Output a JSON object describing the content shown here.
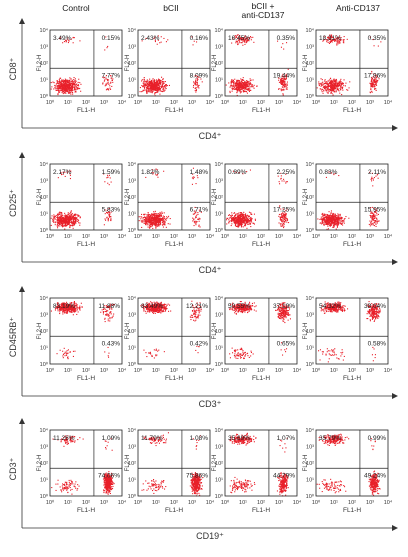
{
  "columns": [
    "Control",
    "bCII",
    "bCII +\nanti-CD137",
    "Anti-CD137"
  ],
  "tick_labels": [
    "10⁰",
    "10¹",
    "10²",
    "10³",
    "10⁴"
  ],
  "colors": {
    "dots": "#e8202a",
    "lines": "#222222",
    "axis": "#333333"
  },
  "chart_data": [
    {
      "type": "scatter",
      "ylabel": "CD8⁺",
      "xlabel": "CD4⁺",
      "panel_xlabel": "FL1-H",
      "panel_ylabel": "FL2-H",
      "xlim": [
        1,
        10000
      ],
      "ylim": [
        1,
        10000
      ],
      "log_scale": true,
      "panels": [
        {
          "column": "Control",
          "quadrants": {
            "ul": "3.49%",
            "ur": "0.15%",
            "lr": "7.77%"
          }
        },
        {
          "column": "bCII",
          "quadrants": {
            "ul": "2.43%",
            "ur": "0.16%",
            "lr": "8.09%"
          }
        },
        {
          "column": "bCII +\nanti-CD137",
          "quadrants": {
            "ul": "16.45%",
            "ur": "0.35%",
            "lr": "19.44%"
          }
        },
        {
          "column": "Anti-CD137",
          "quadrants": {
            "ul": "18.31%",
            "ur": "0.35%",
            "lr": "17.96%"
          }
        }
      ]
    },
    {
      "type": "scatter",
      "ylabel": "CD25⁺",
      "xlabel": "CD4⁺",
      "panel_xlabel": "FL1-H",
      "panel_ylabel": "FL2-H",
      "xlim": [
        1,
        10000
      ],
      "ylim": [
        1,
        10000
      ],
      "log_scale": true,
      "panels": [
        {
          "column": "Control",
          "quadrants": {
            "ul": "2.17%",
            "ur": "1.59%",
            "lr": "5.83%"
          }
        },
        {
          "column": "bCII",
          "quadrants": {
            "ul": "1.82%",
            "ur": "1.48%",
            "lr": "6.71%"
          }
        },
        {
          "column": "bCII +\nanti-CD137",
          "quadrants": {
            "ul": "0.89%",
            "ur": "2.25%",
            "lr": "17.25%"
          }
        },
        {
          "column": "Anti-CD137",
          "quadrants": {
            "ul": "0.83%",
            "ur": "2.11%",
            "lr": "15.95%"
          }
        }
      ]
    },
    {
      "type": "scatter",
      "ylabel": "CD45RB⁺",
      "xlabel": "CD3⁺",
      "panel_xlabel": "FL1-H",
      "panel_ylabel": "FL2-H",
      "xlim": [
        1,
        10000
      ],
      "ylim": [
        1,
        10000
      ],
      "log_scale": true,
      "panels": [
        {
          "column": "Control",
          "quadrants": {
            "ul": "83.19%",
            "ur": "11.88%",
            "lr": "0.43%"
          }
        },
        {
          "column": "bCII",
          "quadrants": {
            "ul": "83.49%",
            "ur": "12.21%",
            "lr": "0.42%"
          }
        },
        {
          "column": "bCII +\nanti-CD137",
          "quadrants": {
            "ul": "50.55%",
            "ur": "37.19%",
            "lr": "0.65%"
          }
        },
        {
          "column": "Anti-CD137",
          "quadrants": {
            "ul": "54.32%",
            "ur": "38.04%",
            "lr": "0.58%"
          }
        }
      ]
    },
    {
      "type": "scatter",
      "ylabel": "CD3⁺",
      "xlabel": "CD19⁺",
      "panel_xlabel": "FL1-H",
      "panel_ylabel": "FL2-H",
      "xlim": [
        1,
        10000
      ],
      "ylim": [
        1,
        10000
      ],
      "log_scale": true,
      "panels": [
        {
          "column": "Control",
          "quadrants": {
            "ul": "11.26%",
            "ur": "1.09%",
            "lr": "74.06%"
          }
        },
        {
          "column": "bCII",
          "quadrants": {
            "ul": "11.79%",
            "ur": "1.08%",
            "lr": "75.86%"
          }
        },
        {
          "column": "bCII +\nanti-CD137",
          "quadrants": {
            "ul": "35.69%",
            "ur": "1.07%",
            "lr": "44.79%"
          }
        },
        {
          "column": "Anti-CD137",
          "quadrants": {
            "ul": "35.79%",
            "ur": "0.99%",
            "lr": "49.24%"
          }
        }
      ]
    }
  ]
}
